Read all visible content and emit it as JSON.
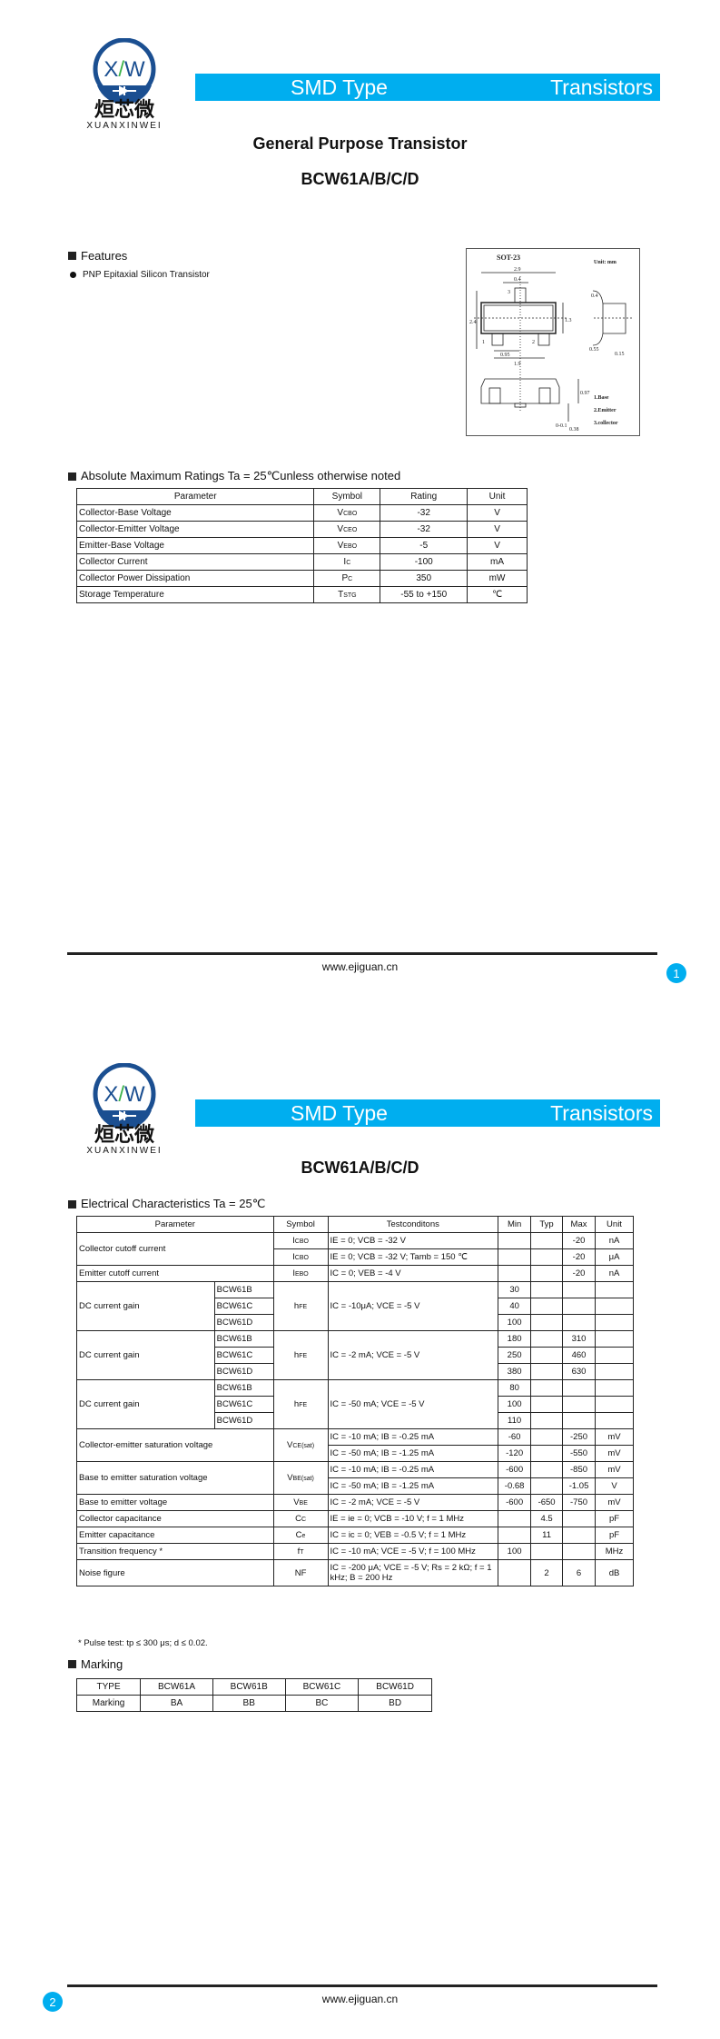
{
  "logo": {
    "brand_cn": "烜芯微",
    "brand_en": "XUANXINWEI",
    "mark": "XW"
  },
  "banner": {
    "left": "SMD Type",
    "right": "Transistors"
  },
  "colors": {
    "accent": "#00aeef",
    "logo_blue": "#1b4f91",
    "logo_green": "#3db34a"
  },
  "page1": {
    "title": "General Purpose Transistor",
    "part": "BCW61A/B/C/D",
    "features": {
      "heading": "Features",
      "items": [
        "PNP Epitaxial Silicon Transistor"
      ]
    },
    "package": {
      "name": "SOT-23",
      "unit": "Unit: mm",
      "dims": [
        "2.9",
        "0.4",
        "2.4",
        "1.3",
        "0.95",
        "1.9",
        "0.4",
        "0.55",
        "0.15",
        "0.97",
        "0-0.1",
        "0.38"
      ],
      "pins": [
        "1",
        "2",
        "3"
      ],
      "legend": [
        "1.Base",
        "2.Emitter",
        "3.collector"
      ]
    },
    "amr": {
      "heading": "Absolute Maximum Ratings Ta = 25℃unless otherwise noted",
      "headers": [
        "Parameter",
        "Symbol",
        "Rating",
        "Unit"
      ],
      "rows": [
        {
          "param": "Collector-Base Voltage",
          "sym": "V",
          "sub": "CBO",
          "rating": "-32",
          "unit": "V"
        },
        {
          "param": "Collector-Emitter Voltage",
          "sym": "V",
          "sub": "CEO",
          "rating": "-32",
          "unit": "V"
        },
        {
          "param": "Emitter-Base Voltage",
          "sym": "V",
          "sub": "EBO",
          "rating": "-5",
          "unit": "V"
        },
        {
          "param": "Collector Current",
          "sym": "I",
          "sub": "C",
          "rating": "-100",
          "unit": "mA"
        },
        {
          "param": "Collector Power Dissipation",
          "sym": "P",
          "sub": "C",
          "rating": "350",
          "unit": "mW"
        },
        {
          "param": "Storage Temperature",
          "sym": "T",
          "sub": "STG",
          "rating": "-55 to +150",
          "unit": "℃"
        }
      ]
    },
    "footer": {
      "site": "www.ejiguan.cn",
      "page": "1"
    }
  },
  "page2": {
    "part": "BCW61A/B/C/D",
    "ec": {
      "heading": "Electrical Characteristics Ta = 25℃",
      "headers": [
        "Parameter",
        "Symbol",
        "Testconditons",
        "Min",
        "Typ",
        "Max",
        "Unit"
      ],
      "icbo": {
        "param": "Collector cutoff current",
        "sym": "I",
        "sub": "CBO",
        "rows": [
          {
            "cond": "IE = 0; VCB = -32 V",
            "max": "-20",
            "unit": "nA"
          },
          {
            "cond": "IE = 0; VCB = -32 V; Tamb = 150 ℃",
            "max": "-20",
            "unit": "μA"
          }
        ]
      },
      "iebo": {
        "param": "Emitter cutoff current",
        "sym": "I",
        "sub": "EBO",
        "cond": "IC = 0; VEB = -4 V",
        "max": "-20",
        "unit": "nA"
      },
      "hfe": [
        {
          "param": "DC current gain",
          "sym": "h",
          "sub": "FE",
          "cond": "IC = -10μA; VCE = -5 V",
          "rows": [
            {
              "type": "BCW61B",
              "min": "30",
              "max": ""
            },
            {
              "type": "BCW61C",
              "min": "40",
              "max": ""
            },
            {
              "type": "BCW61D",
              "min": "100",
              "max": ""
            }
          ]
        },
        {
          "param": "DC current gain",
          "sym": "h",
          "sub": "FE",
          "cond": "IC = -2 mA; VCE = -5 V",
          "rows": [
            {
              "type": "BCW61B",
              "min": "180",
              "max": "310"
            },
            {
              "type": "BCW61C",
              "min": "250",
              "max": "460"
            },
            {
              "type": "BCW61D",
              "min": "380",
              "max": "630"
            }
          ]
        },
        {
          "param": "DC current gain",
          "sym": "h",
          "sub": "FE",
          "cond": "IC = -50 mA; VCE = -5 V",
          "rows": [
            {
              "type": "BCW61B",
              "min": "80",
              "max": ""
            },
            {
              "type": "BCW61C",
              "min": "100",
              "max": ""
            },
            {
              "type": "BCW61D",
              "min": "110",
              "max": ""
            }
          ]
        }
      ],
      "vcesat": {
        "param": "Collector-emitter saturation voltage",
        "sym": "V",
        "sub": "CE(sat)",
        "rows": [
          {
            "cond": "IC = -10 mA; IB = -0.25 mA",
            "min": "-60",
            "max": "-250",
            "unit": "mV"
          },
          {
            "cond": "IC = -50 mA; IB = -1.25 mA",
            "min": "-120",
            "max": "-550",
            "unit": "mV"
          }
        ]
      },
      "vbesat": {
        "param": "Base to emitter saturation voltage",
        "sym": "V",
        "sub": "BE(sat)",
        "rows": [
          {
            "cond": "IC = -10 mA; IB = -0.25 mA",
            "min": "-600",
            "max": "-850",
            "unit": "mV"
          },
          {
            "cond": "IC = -50 mA; IB = -1.25 mA",
            "min": "-0.68",
            "max": "-1.05",
            "unit": "V"
          }
        ]
      },
      "singles": [
        {
          "param": "Base to emitter voltage",
          "sym": "V",
          "sub": "BE",
          "cond": "IC = -2 mA; VCE = -5 V",
          "min": "-600",
          "typ": "-650",
          "max": "-750",
          "unit": "mV"
        },
        {
          "param": "Collector capacitance",
          "sym": "C",
          "sub": "C",
          "cond": "IE = ie = 0; VCB = -10 V; f = 1 MHz",
          "min": "",
          "typ": "4.5",
          "max": "",
          "unit": "pF"
        },
        {
          "param": "Emitter capacitance",
          "sym": "C",
          "sub": "e",
          "cond": "IC = ic = 0; VEB = -0.5 V; f = 1 MHz",
          "min": "",
          "typ": "11",
          "max": "",
          "unit": "pF"
        },
        {
          "param": "Transition frequency  *",
          "sym": "f",
          "sub": "T",
          "cond": "IC = -10 mA; VCE = -5 V; f = 100 MHz",
          "min": "100",
          "typ": "",
          "max": "",
          "unit": "MHz"
        },
        {
          "param": "Noise figure",
          "sym": "NF",
          "sub": "",
          "cond": "IC = -200 μA; VCE = -5 V; Rs = 2 kΩ; f = 1 kHz; B = 200 Hz",
          "min": "",
          "typ": "2",
          "max": "6",
          "unit": "dB"
        }
      ],
      "note": "* Pulse test: tp ≤ 300 μs; d ≤ 0.02."
    },
    "marking": {
      "heading": "Marking",
      "rows": [
        [
          "TYPE",
          "BCW61A",
          "BCW61B",
          "BCW61C",
          "BCW61D"
        ],
        [
          "Marking",
          "BA",
          "BB",
          "BC",
          "BD"
        ]
      ]
    },
    "footer": {
      "site": "www.ejiguan.cn",
      "page": "2"
    }
  }
}
